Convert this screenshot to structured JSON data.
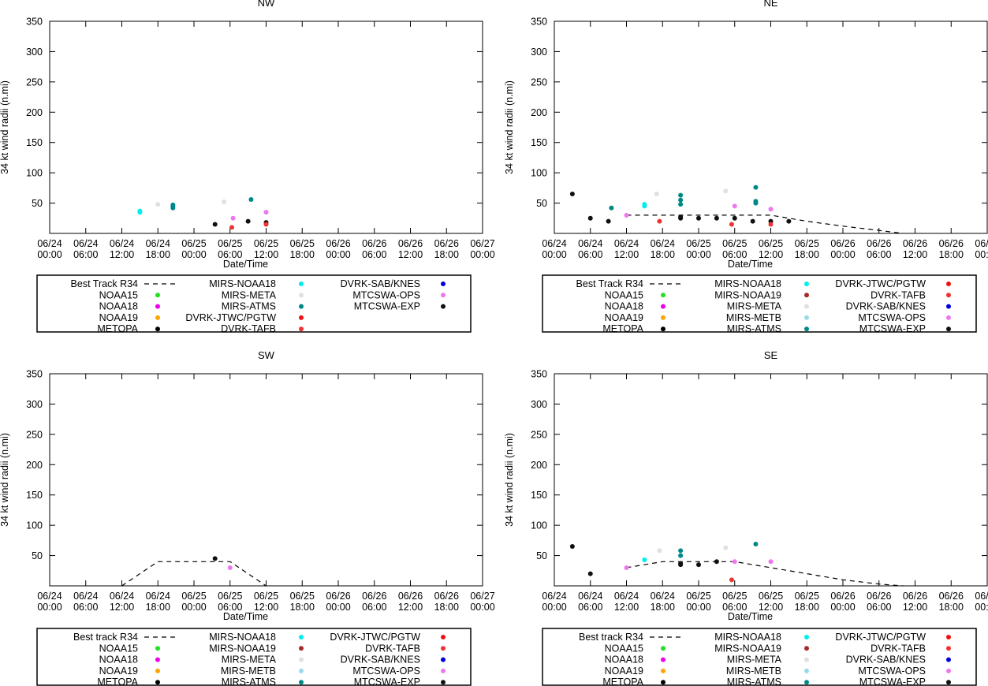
{
  "chart_data": [
    {
      "type": "scatter",
      "title": "NW",
      "xlabel": "Date/Time",
      "ylabel": "34 kt wind radii (n.mi)",
      "ylim": [
        0,
        350
      ],
      "y_ticks": [
        "50",
        "100",
        "150",
        "200",
        "250",
        "300",
        "350"
      ],
      "x_ticks": [
        {
          "date": "06/24",
          "time": "00:00"
        },
        {
          "date": "06/24",
          "time": "06:00"
        },
        {
          "date": "06/24",
          "time": "12:00"
        },
        {
          "date": "06/24",
          "time": "18:00"
        },
        {
          "date": "06/25",
          "time": "00:00"
        },
        {
          "date": "06/25",
          "time": "06:00"
        },
        {
          "date": "06/25",
          "time": "12:00"
        },
        {
          "date": "06/25",
          "time": "18:00"
        },
        {
          "date": "06/26",
          "time": "00:00"
        },
        {
          "date": "06/26",
          "time": "06:00"
        },
        {
          "date": "06/26",
          "time": "12:00"
        },
        {
          "date": "06/26",
          "time": "18:00"
        },
        {
          "date": "06/27",
          "time": "00:00"
        }
      ],
      "legend": [
        {
          "label": "Best Track R34",
          "marker": "line"
        },
        {
          "label": "NOAA15",
          "color": "#22e022"
        },
        {
          "label": "NOAA18",
          "color": "#ee00ee"
        },
        {
          "label": "NOAA19",
          "color": "#ffa500"
        },
        {
          "label": "METOPA",
          "color": "#000000"
        },
        {
          "label": "MIRS-NOAA18",
          "color": "#00eeee"
        },
        {
          "label": "MIRS-META",
          "color": "#e0e0e0"
        },
        {
          "label": "MIRS-ATMS",
          "color": "#008888"
        },
        {
          "label": "DVRK-JTWC/PGTW",
          "color": "#ee1111"
        },
        {
          "label": "DVRK-TAFB",
          "color": "#ee3333"
        },
        {
          "label": "DVRK-SAB/KNES",
          "color": "#0000dd"
        },
        {
          "label": "MTCSWA-OPS",
          "color": "#ee77ee"
        },
        {
          "label": "MTCSWA-EXP",
          "color": "#111111"
        }
      ],
      "best_track": [],
      "points": [
        {
          "x": 15,
          "y": 35,
          "color": "#00eeee"
        },
        {
          "x": 15,
          "y": 37,
          "color": "#00eeee"
        },
        {
          "x": 18,
          "y": 48,
          "color": "#e0e0e0"
        },
        {
          "x": 20.5,
          "y": 42,
          "color": "#008888"
        },
        {
          "x": 20.5,
          "y": 45,
          "color": "#008888"
        },
        {
          "x": 20.5,
          "y": 47,
          "color": "#008888"
        },
        {
          "x": 27.5,
          "y": 15,
          "color": "#111111"
        },
        {
          "x": 29,
          "y": 52,
          "color": "#e0e0e0"
        },
        {
          "x": 30.3,
          "y": 10,
          "color": "#ee3333"
        },
        {
          "x": 30.5,
          "y": 25,
          "color": "#ee77ee"
        },
        {
          "x": 33,
          "y": 20,
          "color": "#111111"
        },
        {
          "x": 33.5,
          "y": 56,
          "color": "#008888"
        },
        {
          "x": 36,
          "y": 35,
          "color": "#ee77ee"
        },
        {
          "x": 36,
          "y": 18,
          "color": "#111111"
        },
        {
          "x": 36,
          "y": 15,
          "color": "#ee3333"
        }
      ]
    },
    {
      "type": "scatter",
      "title": "NE",
      "xlabel": "Date/Time",
      "ylabel": "34 kt wind radii (n.mi)",
      "ylim": [
        0,
        350
      ],
      "y_ticks": [
        "50",
        "100",
        "150",
        "200",
        "250",
        "300",
        "350"
      ],
      "x_ticks": [
        {
          "date": "06/24",
          "time": "00:00"
        },
        {
          "date": "06/24",
          "time": "06:00"
        },
        {
          "date": "06/24",
          "time": "12:00"
        },
        {
          "date": "06/24",
          "time": "18:00"
        },
        {
          "date": "06/25",
          "time": "00:00"
        },
        {
          "date": "06/25",
          "time": "06:00"
        },
        {
          "date": "06/25",
          "time": "12:00"
        },
        {
          "date": "06/25",
          "time": "18:00"
        },
        {
          "date": "06/26",
          "time": "00:00"
        },
        {
          "date": "06/26",
          "time": "06:00"
        },
        {
          "date": "06/26",
          "time": "12:00"
        },
        {
          "date": "06/26",
          "time": "18:00"
        },
        {
          "date": "06/27",
          "time": "00:00"
        }
      ],
      "legend": [
        {
          "label": "Best Track R34",
          "marker": "line"
        },
        {
          "label": "NOAA15",
          "color": "#22e022"
        },
        {
          "label": "NOAA18",
          "color": "#ee00ee"
        },
        {
          "label": "NOAA19",
          "color": "#ffa500"
        },
        {
          "label": "METOPA",
          "color": "#000000"
        },
        {
          "label": "MIRS-NOAA18",
          "color": "#00eeee"
        },
        {
          "label": "MIRS-NOAA19",
          "color": "#a52a2a"
        },
        {
          "label": "MIRS-META",
          "color": "#e0e0e0"
        },
        {
          "label": "MIRS-METB",
          "color": "#99d9ea"
        },
        {
          "label": "MIRS-ATMS",
          "color": "#008888"
        },
        {
          "label": "DVRK-JTWC/PGTW",
          "color": "#ee1111"
        },
        {
          "label": "DVRK-TAFB",
          "color": "#ee3333"
        },
        {
          "label": "DVRK-SAB/KNES",
          "color": "#0000dd"
        },
        {
          "label": "MTCSWA-OPS",
          "color": "#ee77ee"
        },
        {
          "label": "MTCSWA-EXP",
          "color": "#111111"
        }
      ],
      "best_track": [
        [
          12,
          30
        ],
        [
          18,
          30
        ],
        [
          24,
          30
        ],
        [
          30,
          30
        ],
        [
          36,
          30
        ],
        [
          42,
          20
        ],
        [
          48,
          12
        ],
        [
          54,
          5
        ],
        [
          58,
          0
        ]
      ],
      "points": [
        {
          "x": 3,
          "y": 65,
          "color": "#111111"
        },
        {
          "x": 6,
          "y": 25,
          "color": "#111111"
        },
        {
          "x": 9,
          "y": 20,
          "color": "#111111"
        },
        {
          "x": 9.5,
          "y": 42,
          "color": "#008888"
        },
        {
          "x": 12,
          "y": 30,
          "color": "#ee77ee"
        },
        {
          "x": 15,
          "y": 45,
          "color": "#00eeee"
        },
        {
          "x": 15,
          "y": 48,
          "color": "#00eeee"
        },
        {
          "x": 17,
          "y": 65,
          "color": "#e0e0e0"
        },
        {
          "x": 17.5,
          "y": 20,
          "color": "#ee3333"
        },
        {
          "x": 21,
          "y": 48,
          "color": "#008888"
        },
        {
          "x": 21,
          "y": 55,
          "color": "#008888"
        },
        {
          "x": 21,
          "y": 63,
          "color": "#008888"
        },
        {
          "x": 21,
          "y": 27,
          "color": "#111111"
        },
        {
          "x": 21,
          "y": 25,
          "color": "#111111"
        },
        {
          "x": 24,
          "y": 25,
          "color": "#111111"
        },
        {
          "x": 27,
          "y": 25,
          "color": "#111111"
        },
        {
          "x": 28.5,
          "y": 70,
          "color": "#e0e0e0"
        },
        {
          "x": 29.5,
          "y": 15,
          "color": "#ee3333"
        },
        {
          "x": 30,
          "y": 45,
          "color": "#ee77ee"
        },
        {
          "x": 30,
          "y": 25,
          "color": "#111111"
        },
        {
          "x": 33,
          "y": 20,
          "color": "#111111"
        },
        {
          "x": 33.5,
          "y": 50,
          "color": "#008888"
        },
        {
          "x": 33.5,
          "y": 53,
          "color": "#008888"
        },
        {
          "x": 33.5,
          "y": 76,
          "color": "#008888"
        },
        {
          "x": 36,
          "y": 40,
          "color": "#ee77ee"
        },
        {
          "x": 36,
          "y": 20,
          "color": "#111111"
        },
        {
          "x": 36,
          "y": 15,
          "color": "#ee3333"
        },
        {
          "x": 39,
          "y": 20,
          "color": "#111111"
        }
      ]
    },
    {
      "type": "scatter",
      "title": "SW",
      "xlabel": "Date/Time",
      "ylabel": "34 kt wind radii (n.mi)",
      "ylim": [
        0,
        350
      ],
      "y_ticks": [
        "50",
        "100",
        "150",
        "200",
        "250",
        "300",
        "350"
      ],
      "x_ticks": [
        {
          "date": "06/24",
          "time": "00:00"
        },
        {
          "date": "06/24",
          "time": "06:00"
        },
        {
          "date": "06/24",
          "time": "12:00"
        },
        {
          "date": "06/24",
          "time": "18:00"
        },
        {
          "date": "06/25",
          "time": "00:00"
        },
        {
          "date": "06/25",
          "time": "06:00"
        },
        {
          "date": "06/25",
          "time": "12:00"
        },
        {
          "date": "06/25",
          "time": "18:00"
        },
        {
          "date": "06/26",
          "time": "00:00"
        },
        {
          "date": "06/26",
          "time": "06:00"
        },
        {
          "date": "06/26",
          "time": "12:00"
        },
        {
          "date": "06/26",
          "time": "18:00"
        },
        {
          "date": "06/27",
          "time": "00:00"
        }
      ],
      "legend": [
        {
          "label": "Best track R34",
          "marker": "line"
        },
        {
          "label": "NOAA15",
          "color": "#22e022"
        },
        {
          "label": "NOAA18",
          "color": "#ee00ee"
        },
        {
          "label": "NOAA19",
          "color": "#ffa500"
        },
        {
          "label": "METOPA",
          "color": "#000000"
        },
        {
          "label": "MIRS-NOAA18",
          "color": "#00eeee"
        },
        {
          "label": "MIRS-NOAA19",
          "color": "#a52a2a"
        },
        {
          "label": "MIRS-META",
          "color": "#e0e0e0"
        },
        {
          "label": "MIRS-METB",
          "color": "#99d9ea"
        },
        {
          "label": "MIRS-ATMS",
          "color": "#008888"
        },
        {
          "label": "DVRK-JTWC/PGTW",
          "color": "#ee1111"
        },
        {
          "label": "DVRK-TAFB",
          "color": "#ee3333"
        },
        {
          "label": "DVRK-SAB/KNES",
          "color": "#0000dd"
        },
        {
          "label": "MTCSWA-OPS",
          "color": "#ee77ee"
        },
        {
          "label": "MTCSWA-EXP",
          "color": "#111111"
        }
      ],
      "best_track": [
        [
          12,
          0
        ],
        [
          18,
          40
        ],
        [
          24,
          40
        ],
        [
          30,
          40
        ],
        [
          36,
          0
        ]
      ],
      "points": [
        {
          "x": 27.5,
          "y": 45,
          "color": "#111111"
        },
        {
          "x": 30,
          "y": 30,
          "color": "#ee77ee"
        }
      ]
    },
    {
      "type": "scatter",
      "title": "SE",
      "xlabel": "Date/Time",
      "ylabel": "34 kt wind radii (n.mi)",
      "ylim": [
        0,
        350
      ],
      "y_ticks": [
        "50",
        "100",
        "150",
        "200",
        "250",
        "300",
        "350"
      ],
      "x_ticks": [
        {
          "date": "06/24",
          "time": "00:00"
        },
        {
          "date": "06/24",
          "time": "06:00"
        },
        {
          "date": "06/24",
          "time": "12:00"
        },
        {
          "date": "06/24",
          "time": "18:00"
        },
        {
          "date": "06/25",
          "time": "00:00"
        },
        {
          "date": "06/25",
          "time": "06:00"
        },
        {
          "date": "06/25",
          "time": "12:00"
        },
        {
          "date": "06/25",
          "time": "18:00"
        },
        {
          "date": "06/26",
          "time": "00:00"
        },
        {
          "date": "06/26",
          "time": "06:00"
        },
        {
          "date": "06/26",
          "time": "12:00"
        },
        {
          "date": "06/26",
          "time": "18:00"
        },
        {
          "date": "06/27",
          "time": "00:00"
        }
      ],
      "legend": [
        {
          "label": "Best track R34",
          "marker": "line"
        },
        {
          "label": "NOAA15",
          "color": "#22e022"
        },
        {
          "label": "NOAA18",
          "color": "#ee00ee"
        },
        {
          "label": "NOAA19",
          "color": "#ffa500"
        },
        {
          "label": "METOPA",
          "color": "#000000"
        },
        {
          "label": "MIRS-NOAA18",
          "color": "#00eeee"
        },
        {
          "label": "MIRS-NOAA19",
          "color": "#a52a2a"
        },
        {
          "label": "MIRS-META",
          "color": "#e0e0e0"
        },
        {
          "label": "MIRS-METB",
          "color": "#99d9ea"
        },
        {
          "label": "MIRS-ATMS",
          "color": "#008888"
        },
        {
          "label": "DVRK-JTWC/PGTW",
          "color": "#ee1111"
        },
        {
          "label": "DVRK-TAFB",
          "color": "#ee3333"
        },
        {
          "label": "DVRK-SAB/KNES",
          "color": "#0000dd"
        },
        {
          "label": "MTCSWA-OPS",
          "color": "#ee77ee"
        },
        {
          "label": "MTCSWA-EXP",
          "color": "#111111"
        }
      ],
      "best_track": [
        [
          12,
          30
        ],
        [
          18,
          40
        ],
        [
          24,
          40
        ],
        [
          30,
          40
        ],
        [
          36,
          30
        ],
        [
          42,
          20
        ],
        [
          48,
          10
        ],
        [
          54,
          3
        ],
        [
          58,
          0
        ]
      ],
      "points": [
        {
          "x": 3,
          "y": 65,
          "color": "#111111"
        },
        {
          "x": 6,
          "y": 20,
          "color": "#111111"
        },
        {
          "x": 12,
          "y": 30,
          "color": "#ee77ee"
        },
        {
          "x": 15,
          "y": 43,
          "color": "#00eeee"
        },
        {
          "x": 17.5,
          "y": 58,
          "color": "#e0e0e0"
        },
        {
          "x": 21,
          "y": 50,
          "color": "#008888"
        },
        {
          "x": 21,
          "y": 58,
          "color": "#008888"
        },
        {
          "x": 21,
          "y": 35,
          "color": "#111111"
        },
        {
          "x": 21,
          "y": 37,
          "color": "#111111"
        },
        {
          "x": 24,
          "y": 35,
          "color": "#111111"
        },
        {
          "x": 27,
          "y": 40,
          "color": "#111111"
        },
        {
          "x": 28.5,
          "y": 63,
          "color": "#e0e0e0"
        },
        {
          "x": 29.5,
          "y": 10,
          "color": "#ee3333"
        },
        {
          "x": 30,
          "y": 40,
          "color": "#ee77ee"
        },
        {
          "x": 33.5,
          "y": 69,
          "color": "#008888"
        },
        {
          "x": 36,
          "y": 40,
          "color": "#ee77ee"
        }
      ]
    }
  ]
}
